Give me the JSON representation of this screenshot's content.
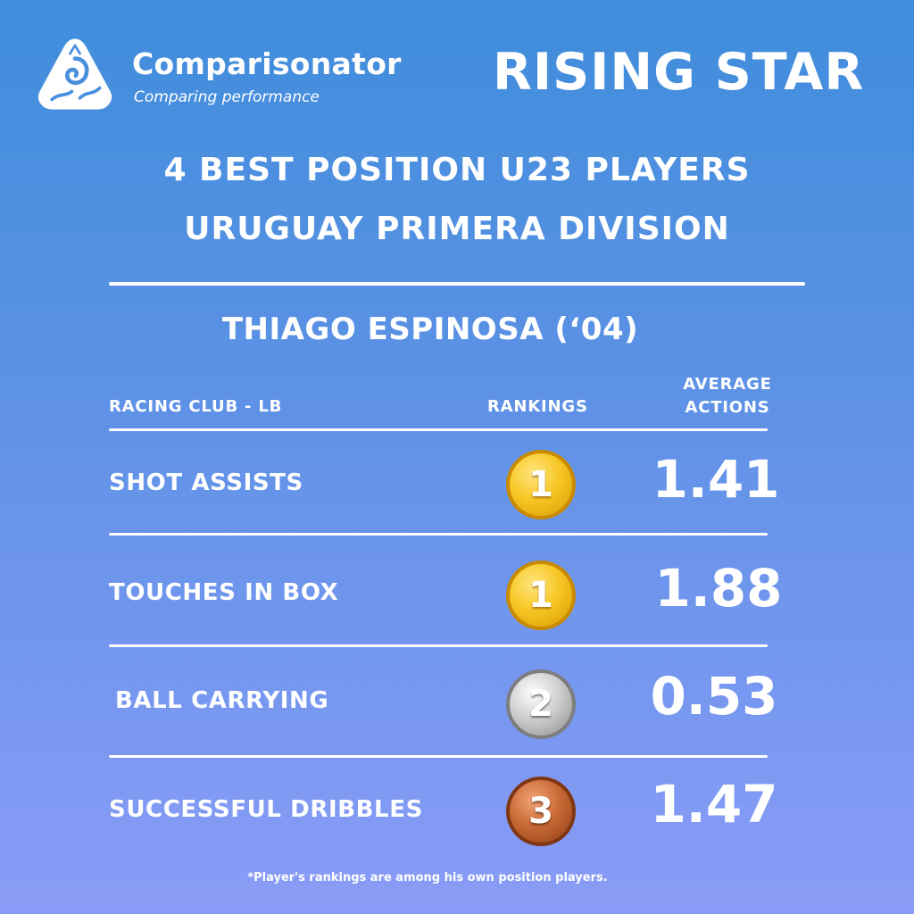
{
  "brand": {
    "name": "Comparisonator",
    "tagline": "Comparing performance"
  },
  "banner": "RISING STAR",
  "headline": {
    "line1": "4 BEST POSITION U23 PLAYERS",
    "line2": "URUGUAY PRIMERA DIVISION"
  },
  "player": {
    "name": "THIAGO ESPINOSA (‘04)",
    "club_position": "RACING CLUB - LB"
  },
  "columns": {
    "rankings": "RANKINGS",
    "average_line1": "AVERAGE",
    "average_line2": "ACTIONS"
  },
  "stats": [
    {
      "metric": "SHOT ASSISTS",
      "rank": "1",
      "medal": "gold",
      "value": "1.41"
    },
    {
      "metric": "TOUCHES IN BOX",
      "rank": "1",
      "medal": "gold",
      "value": "1.88"
    },
    {
      "metric": "BALL CARRYING",
      "rank": "2",
      "medal": "silver",
      "value": "0.53"
    },
    {
      "metric": "SUCCESSFUL DRIBBLES",
      "rank": "3",
      "medal": "bronze",
      "value": "1.47"
    }
  ],
  "footnote": "*Player's rankings are among his own position players.",
  "colors": {
    "background_top": "#3f8ddb",
    "background_bottom": "#8a9cf7",
    "gold": "#f7c726",
    "silver": "#cfcfcf",
    "bronze": "#c96a36",
    "text": "#ffffff"
  }
}
